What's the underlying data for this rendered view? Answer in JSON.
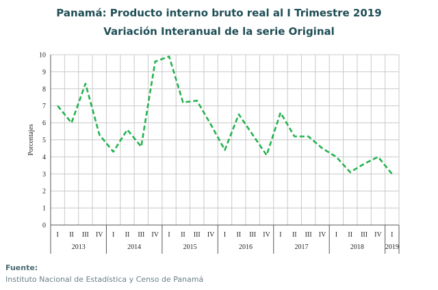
{
  "chart_data": {
    "type": "line",
    "title": "Panamá: Producto interno bruto real al I Trimestre 2019",
    "subtitle": "Variación Interanual de la serie Original",
    "ylabel": "Porcentajes",
    "xlabel": "",
    "ylim": [
      0,
      10
    ],
    "yticks": [
      "0",
      "1",
      "2",
      "3",
      "4",
      "5",
      "6",
      "7",
      "8",
      "9",
      "10"
    ],
    "grid": true,
    "line_color": "#22b24c",
    "line_style": "dashed",
    "quarters": [
      "I",
      "II",
      "III",
      "IV",
      "I",
      "II",
      "III",
      "IV",
      "I",
      "II",
      "III",
      "IV",
      "I",
      "II",
      "III",
      "IV",
      "I",
      "II",
      "III",
      "IV",
      "I",
      "II",
      "III",
      "IV",
      "I"
    ],
    "years": [
      {
        "label": "2013",
        "quarters": 4
      },
      {
        "label": "2014",
        "quarters": 4
      },
      {
        "label": "2015",
        "quarters": 4
      },
      {
        "label": "2016",
        "quarters": 4
      },
      {
        "label": "2017",
        "quarters": 4
      },
      {
        "label": "2018",
        "quarters": 4
      },
      {
        "label": "2019",
        "quarters": 1
      }
    ],
    "values": [
      7.0,
      6.0,
      8.3,
      5.3,
      4.3,
      5.6,
      4.6,
      9.6,
      9.9,
      7.2,
      7.3,
      5.9,
      4.4,
      6.5,
      5.3,
      4.1,
      6.6,
      5.2,
      5.2,
      4.5,
      4.0,
      3.1,
      3.6,
      4.0,
      3.0
    ]
  },
  "source": {
    "label": "Fuente:",
    "text": "Instituto Nacional de Estadística y Censo de Panamá"
  }
}
